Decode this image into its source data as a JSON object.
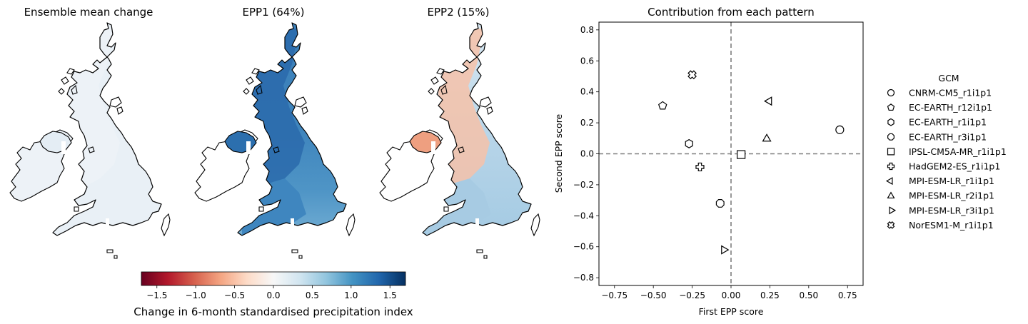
{
  "maps": [
    {
      "title": "Ensemble mean change"
    },
    {
      "title": "EPP1 (64%)"
    },
    {
      "title": "EPP2 (15%)"
    }
  ],
  "colorbar": {
    "label": "Change in 6-month standardised precipitation index",
    "range": [
      -1.7,
      1.7
    ],
    "ticks": [
      -1.5,
      -1.0,
      -0.5,
      0.0,
      0.5,
      1.0,
      1.5
    ],
    "tick_labels": [
      "−1.5",
      "−1.0",
      "−0.5",
      "0.0",
      "0.5",
      "1.0",
      "1.5"
    ],
    "colormap": "RdBu",
    "stops": [
      "#67001f",
      "#b2182b",
      "#d6604d",
      "#f4a582",
      "#fddbc7",
      "#f7f7f7",
      "#d1e5f0",
      "#92c5de",
      "#4393c3",
      "#2166ac",
      "#053061"
    ]
  },
  "chart_data": {
    "type": "scatter",
    "title": "Contribution from each pattern",
    "xlabel": "First EPP score",
    "ylabel": "Second EPP score",
    "xlim": [
      -0.85,
      0.85
    ],
    "ylim": [
      -0.85,
      0.85
    ],
    "xticks": [
      -0.75,
      -0.5,
      -0.25,
      0.0,
      0.25,
      0.5,
      0.75
    ],
    "xtick_labels": [
      "−0.75",
      "−0.50",
      "−0.25",
      "0.00",
      "0.25",
      "0.50",
      "0.75"
    ],
    "yticks": [
      -0.8,
      -0.6,
      -0.4,
      -0.2,
      0.0,
      0.2,
      0.4,
      0.6,
      0.8
    ],
    "ytick_labels": [
      "−0.8",
      "−0.6",
      "−0.4",
      "−0.2",
      "0.0",
      "0.2",
      "0.4",
      "0.6",
      "0.8"
    ],
    "grid": false,
    "reference_lines": [
      {
        "axis": "x",
        "value": 0
      },
      {
        "axis": "y",
        "value": 0
      }
    ],
    "legend": {
      "title": "GCM",
      "placement": "outside-right"
    },
    "series": [
      {
        "name": "CNRM-CM5_r1i1p1",
        "marker": "circle",
        "x": 0.7,
        "y": 0.155
      },
      {
        "name": "EC-EARTH_r12i1p1",
        "marker": "pentagon",
        "x": -0.44,
        "y": 0.31
      },
      {
        "name": "EC-EARTH_r1i1p1",
        "marker": "hexagon",
        "x": -0.27,
        "y": 0.065
      },
      {
        "name": "EC-EARTH_r3i1p1",
        "marker": "octagon",
        "x": -0.07,
        "y": -0.32
      },
      {
        "name": "IPSL-CM5A-MR_r1i1p1",
        "marker": "square",
        "x": 0.065,
        "y": -0.005
      },
      {
        "name": "HadGEM2-ES_r1i1p1",
        "marker": "plus",
        "x": -0.2,
        "y": -0.085
      },
      {
        "name": "MPI-ESM-LR_r1i1p1",
        "marker": "triangle-left",
        "x": 0.25,
        "y": 0.34
      },
      {
        "name": "MPI-ESM-LR_r2i1p1",
        "marker": "triangle-up",
        "x": 0.23,
        "y": 0.1
      },
      {
        "name": "MPI-ESM-LR_r3i1p1",
        "marker": "triangle-right",
        "x": -0.05,
        "y": -0.62
      },
      {
        "name": "NorESM1-M_r1i1p1",
        "marker": "x",
        "x": -0.25,
        "y": 0.51
      }
    ]
  }
}
